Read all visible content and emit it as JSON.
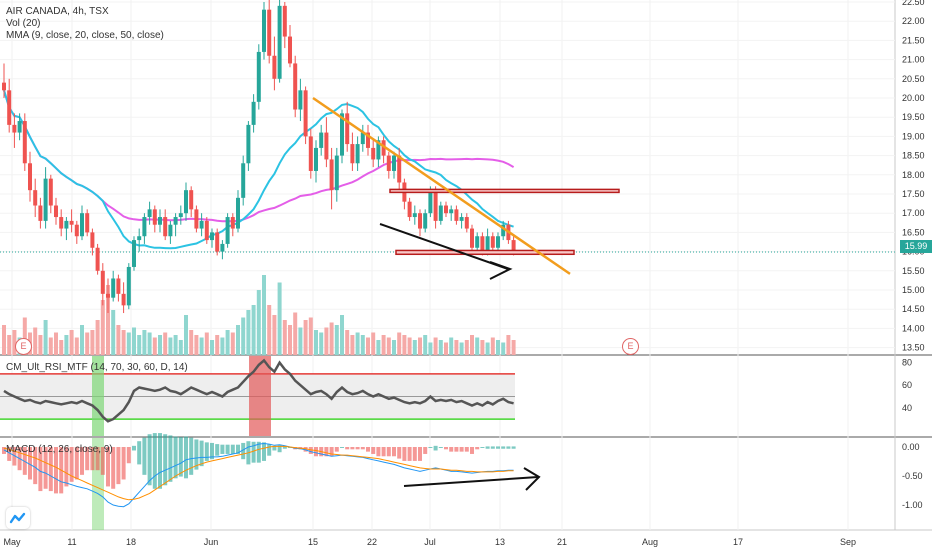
{
  "header": {
    "symbol_line": "AIR CANADA, 4h, TSX",
    "volume_line": "Vol (20)",
    "mma_line": "MMA (9, close, 20, close, 50, close)"
  },
  "price_axis": {
    "labels": [
      "22.50",
      "22.00",
      "21.50",
      "21.00",
      "20.50",
      "20.00",
      "19.50",
      "19.00",
      "18.50",
      "18.00",
      "17.50",
      "17.00",
      "16.50",
      "16.00",
      "15.50",
      "15.00",
      "14.50",
      "14.00",
      "13.50"
    ],
    "last_price": "15.99",
    "last_price_color": "#26a69a"
  },
  "rsi_axis": {
    "labels": [
      "80",
      "60",
      "40"
    ]
  },
  "macd_axis": {
    "labels": [
      "0.00",
      "-0.50",
      "-1.00"
    ]
  },
  "time_axis": {
    "labels": [
      "May",
      "11",
      "18",
      "Jun",
      "15",
      "22",
      "Jul",
      "13",
      "21",
      "Aug",
      "17",
      "Sep"
    ]
  },
  "indicators": {
    "rsi_label": "CM_Ult_RSI_MTF (14, 70, 30, 60, D, 14)",
    "macd_label": "MACD (12, 26, close, 9)"
  },
  "earnings_marker": "E",
  "colors": {
    "up": "#26a69a",
    "down": "#ef5350",
    "trendline": "#f29d1e",
    "sma20": "#2cc3e3",
    "sma50": "#e45ee8"
  },
  "chart_data": {
    "type": "candlestick",
    "interval": "4h",
    "symbol": "AIR CANADA",
    "exchange": "TSX",
    "ylim": [
      13.3,
      22.6
    ],
    "last": 15.99,
    "x_ticks": [
      "May",
      "11",
      "18",
      "Jun",
      "15",
      "22",
      "Jul",
      "13",
      "21",
      "Aug",
      "17",
      "Sep"
    ],
    "candles": [
      [
        20.4,
        20.9,
        20.0,
        20.2
      ],
      [
        20.2,
        20.5,
        19.1,
        19.3
      ],
      [
        19.3,
        19.6,
        18.7,
        19.1
      ],
      [
        19.1,
        19.6,
        18.9,
        19.4
      ],
      [
        19.4,
        19.6,
        18.1,
        18.3
      ],
      [
        18.3,
        18.6,
        17.3,
        17.6
      ],
      [
        17.6,
        17.9,
        16.9,
        17.2
      ],
      [
        17.2,
        17.4,
        16.6,
        16.8
      ],
      [
        16.8,
        18.2,
        16.6,
        17.9
      ],
      [
        17.9,
        18.0,
        17.0,
        17.2
      ],
      [
        17.2,
        17.4,
        16.7,
        16.9
      ],
      [
        16.9,
        17.1,
        16.4,
        16.6
      ],
      [
        16.6,
        16.9,
        16.3,
        16.8
      ],
      [
        16.8,
        17.1,
        16.5,
        16.7
      ],
      [
        16.7,
        16.8,
        16.2,
        16.4
      ],
      [
        16.4,
        17.2,
        16.3,
        17.0
      ],
      [
        17.0,
        17.1,
        16.4,
        16.5
      ],
      [
        16.5,
        16.6,
        15.9,
        16.1
      ],
      [
        16.1,
        16.2,
        15.4,
        15.5
      ],
      [
        15.5,
        15.7,
        14.6,
        14.9
      ],
      [
        14.9,
        15.3,
        14.4,
        14.8
      ],
      [
        14.8,
        15.5,
        14.7,
        15.3
      ],
      [
        15.3,
        15.4,
        14.7,
        14.9
      ],
      [
        14.9,
        15.2,
        14.4,
        14.6
      ],
      [
        14.6,
        15.7,
        14.5,
        15.6
      ],
      [
        15.6,
        16.4,
        15.5,
        16.3
      ],
      [
        16.3,
        16.6,
        16.0,
        16.4
      ],
      [
        16.4,
        17.0,
        16.2,
        16.9
      ],
      [
        16.9,
        17.3,
        16.7,
        17.1
      ],
      [
        17.1,
        17.2,
        16.5,
        16.7
      ],
      [
        16.7,
        17.1,
        16.5,
        16.9
      ],
      [
        16.9,
        17.1,
        16.3,
        16.4
      ],
      [
        16.4,
        16.8,
        16.2,
        16.7
      ],
      [
        16.7,
        17.0,
        16.4,
        16.9
      ],
      [
        16.9,
        17.2,
        16.7,
        17.0
      ],
      [
        17.0,
        17.8,
        16.8,
        17.6
      ],
      [
        17.6,
        17.7,
        16.9,
        17.1
      ],
      [
        17.1,
        17.2,
        16.5,
        16.6
      ],
      [
        16.6,
        17.0,
        16.4,
        16.8
      ],
      [
        16.8,
        16.9,
        16.2,
        16.3
      ],
      [
        16.3,
        16.6,
        16.1,
        16.5
      ],
      [
        16.5,
        16.6,
        15.9,
        16.0
      ],
      [
        16.0,
        16.3,
        15.8,
        16.2
      ],
      [
        16.2,
        17.0,
        16.1,
        16.9
      ],
      [
        16.9,
        17.0,
        16.4,
        16.6
      ],
      [
        16.6,
        17.6,
        16.5,
        17.4
      ],
      [
        17.4,
        18.5,
        17.2,
        18.3
      ],
      [
        18.3,
        19.4,
        18.1,
        19.3
      ],
      [
        19.3,
        20.1,
        19.1,
        19.9
      ],
      [
        19.9,
        21.4,
        19.7,
        21.2
      ],
      [
        21.2,
        22.5,
        21.0,
        22.3
      ],
      [
        22.3,
        22.7,
        20.9,
        21.1
      ],
      [
        21.1,
        21.6,
        20.2,
        20.5
      ],
      [
        20.5,
        22.6,
        20.4,
        22.4
      ],
      [
        22.4,
        22.5,
        21.3,
        21.6
      ],
      [
        21.6,
        21.9,
        20.8,
        20.9
      ],
      [
        20.9,
        21.1,
        19.5,
        19.7
      ],
      [
        19.7,
        20.5,
        19.4,
        20.2
      ],
      [
        20.2,
        20.3,
        18.8,
        19.0
      ],
      [
        19.0,
        19.2,
        17.9,
        18.1
      ],
      [
        18.1,
        18.9,
        17.8,
        18.7
      ],
      [
        18.7,
        19.3,
        18.5,
        19.1
      ],
      [
        19.1,
        19.5,
        18.2,
        18.4
      ],
      [
        18.4,
        18.7,
        17.1,
        17.6
      ],
      [
        17.6,
        18.7,
        17.3,
        18.5
      ],
      [
        18.5,
        19.7,
        18.3,
        19.6
      ],
      [
        19.6,
        19.9,
        18.6,
        18.8
      ],
      [
        18.8,
        19.1,
        18.1,
        18.3
      ],
      [
        18.3,
        19.0,
        18.1,
        18.8
      ],
      [
        18.8,
        19.3,
        18.6,
        19.1
      ],
      [
        19.1,
        19.3,
        18.5,
        18.7
      ],
      [
        18.7,
        18.9,
        18.2,
        18.4
      ],
      [
        18.4,
        19.0,
        18.2,
        18.9
      ],
      [
        18.9,
        19.0,
        18.3,
        18.5
      ],
      [
        18.5,
        18.6,
        17.9,
        18.1
      ],
      [
        18.1,
        18.6,
        17.9,
        18.5
      ],
      [
        18.5,
        18.7,
        17.6,
        17.8
      ],
      [
        17.8,
        17.9,
        17.1,
        17.3
      ],
      [
        17.3,
        17.4,
        16.8,
        16.9
      ],
      [
        16.9,
        17.2,
        16.7,
        17.0
      ],
      [
        17.0,
        17.1,
        16.4,
        16.6
      ],
      [
        16.6,
        17.1,
        16.5,
        17.0
      ],
      [
        17.0,
        17.7,
        16.9,
        17.6
      ],
      [
        17.6,
        17.7,
        16.6,
        16.8
      ],
      [
        16.8,
        17.3,
        16.7,
        17.2
      ],
      [
        17.2,
        17.3,
        16.9,
        17.0
      ],
      [
        17.0,
        17.2,
        16.8,
        17.1
      ],
      [
        17.1,
        17.2,
        16.7,
        16.8
      ],
      [
        16.8,
        17.0,
        16.6,
        16.9
      ],
      [
        16.9,
        17.0,
        16.5,
        16.6
      ],
      [
        16.6,
        16.7,
        16.0,
        16.1
      ],
      [
        16.1,
        16.5,
        16.0,
        16.4
      ],
      [
        16.4,
        16.5,
        15.9,
        16.0
      ],
      [
        16.0,
        16.6,
        15.9,
        16.4
      ],
      [
        16.4,
        16.5,
        16.0,
        16.1
      ],
      [
        16.1,
        16.5,
        16.0,
        16.4
      ],
      [
        16.4,
        16.8,
        16.3,
        16.7
      ],
      [
        16.7,
        16.8,
        16.2,
        16.3
      ],
      [
        16.3,
        16.4,
        15.9,
        15.99
      ]
    ],
    "volume": [
      12,
      8,
      10,
      7,
      15,
      9,
      11,
      8,
      14,
      7,
      9,
      6,
      8,
      10,
      7,
      12,
      9,
      10,
      14,
      22,
      28,
      18,
      12,
      10,
      9,
      11,
      8,
      10,
      9,
      7,
      8,
      9,
      7,
      8,
      6,
      16,
      10,
      8,
      7,
      9,
      6,
      8,
      7,
      10,
      9,
      12,
      15,
      18,
      20,
      26,
      32,
      20,
      16,
      29,
      14,
      12,
      17,
      11,
      14,
      15,
      10,
      9,
      11,
      13,
      12,
      16,
      10,
      8,
      9,
      8,
      7,
      9,
      6,
      8,
      7,
      6,
      9,
      8,
      7,
      6,
      7,
      8,
      5,
      7,
      6,
      5,
      7,
      6,
      5,
      6,
      8,
      7,
      6,
      5,
      7,
      6,
      5,
      8,
      6
    ],
    "annotations": {
      "resistance_zone": [
        17.55,
        17.62
      ],
      "support_zone": [
        15.93,
        16.03
      ],
      "trendline": [
        [
          20.0,
          15.42
        ]
      ],
      "rsi_bands": [
        30,
        70
      ],
      "rsi_midline": 50
    },
    "rsi_ylim": [
      15,
      85
    ],
    "rsi": [
      55,
      52,
      50,
      48,
      46,
      47,
      45,
      44,
      46,
      45,
      44,
      43,
      44,
      45,
      44,
      46,
      44,
      42,
      38,
      32,
      28,
      30,
      34,
      38,
      45,
      55,
      58,
      57,
      56,
      55,
      56,
      58,
      55,
      54,
      52,
      55,
      58,
      56,
      54,
      52,
      54,
      52,
      50,
      54,
      56,
      58,
      63,
      68,
      72,
      78,
      82,
      76,
      72,
      80,
      74,
      70,
      64,
      60,
      56,
      52,
      54,
      55,
      52,
      48,
      54,
      58,
      54,
      52,
      53,
      55,
      52,
      50,
      52,
      50,
      48,
      49,
      47,
      45,
      44,
      45,
      44,
      46,
      50,
      46,
      47,
      46,
      47,
      45,
      46,
      44,
      42,
      44,
      42,
      45,
      43,
      46,
      48,
      45,
      44
    ],
    "macd_ylim": [
      -1.15,
      0.15
    ],
    "macd": [
      -0.05,
      -0.1,
      -0.15,
      -0.2,
      -0.25,
      -0.3,
      -0.35,
      -0.42,
      -0.45,
      -0.5,
      -0.55,
      -0.6,
      -0.62,
      -0.65,
      -0.68,
      -0.7,
      -0.72,
      -0.76,
      -0.8,
      -0.86,
      -0.95,
      -1.0,
      -1.02,
      -1.03,
      -0.98,
      -0.88,
      -0.78,
      -0.68,
      -0.58,
      -0.5,
      -0.44,
      -0.4,
      -0.36,
      -0.32,
      -0.28,
      -0.22,
      -0.2,
      -0.19,
      -0.18,
      -0.18,
      -0.17,
      -0.17,
      -0.16,
      -0.14,
      -0.12,
      -0.1,
      -0.05,
      0.0,
      0.02,
      0.05,
      0.06,
      0.05,
      0.03,
      0.04,
      0.02,
      0.0,
      -0.02,
      -0.03,
      -0.05,
      -0.08,
      -0.1,
      -0.12,
      -0.14,
      -0.16,
      -0.15,
      -0.14,
      -0.15,
      -0.16,
      -0.17,
      -0.18,
      -0.2,
      -0.22,
      -0.24,
      -0.26,
      -0.28,
      -0.3,
      -0.33,
      -0.36,
      -0.38,
      -0.4,
      -0.42,
      -0.4,
      -0.38,
      -0.36,
      -0.38,
      -0.4,
      -0.42,
      -0.42,
      -0.43,
      -0.44,
      -0.45,
      -0.44,
      -0.43,
      -0.42,
      -0.42,
      -0.41,
      -0.41,
      -0.4,
      -0.4
    ],
    "macd_signal": [
      -0.02,
      -0.04,
      -0.07,
      -0.1,
      -0.13,
      -0.16,
      -0.19,
      -0.23,
      -0.27,
      -0.31,
      -0.35,
      -0.4,
      -0.45,
      -0.5,
      -0.54,
      -0.58,
      -0.62,
      -0.66,
      -0.7,
      -0.74,
      -0.78,
      -0.82,
      -0.86,
      -0.89,
      -0.91,
      -0.9,
      -0.88,
      -0.84,
      -0.8,
      -0.74,
      -0.68,
      -0.62,
      -0.56,
      -0.5,
      -0.45,
      -0.4,
      -0.36,
      -0.32,
      -0.29,
      -0.26,
      -0.24,
      -0.22,
      -0.2,
      -0.18,
      -0.16,
      -0.14,
      -0.12,
      -0.1,
      -0.07,
      -0.04,
      -0.02,
      0.0,
      0.01,
      0.01,
      0.01,
      0.0,
      -0.01,
      -0.02,
      -0.03,
      -0.05,
      -0.06,
      -0.08,
      -0.1,
      -0.12,
      -0.13,
      -0.14,
      -0.14,
      -0.15,
      -0.16,
      -0.17,
      -0.18,
      -0.19,
      -0.2,
      -0.22,
      -0.24,
      -0.26,
      -0.28,
      -0.3,
      -0.32,
      -0.34,
      -0.36,
      -0.37,
      -0.38,
      -0.38,
      -0.38,
      -0.39,
      -0.4,
      -0.4,
      -0.41,
      -0.42,
      -0.42,
      -0.43,
      -0.43,
      -0.43,
      -0.43,
      -0.42,
      -0.42,
      -0.41,
      -0.41
    ]
  }
}
